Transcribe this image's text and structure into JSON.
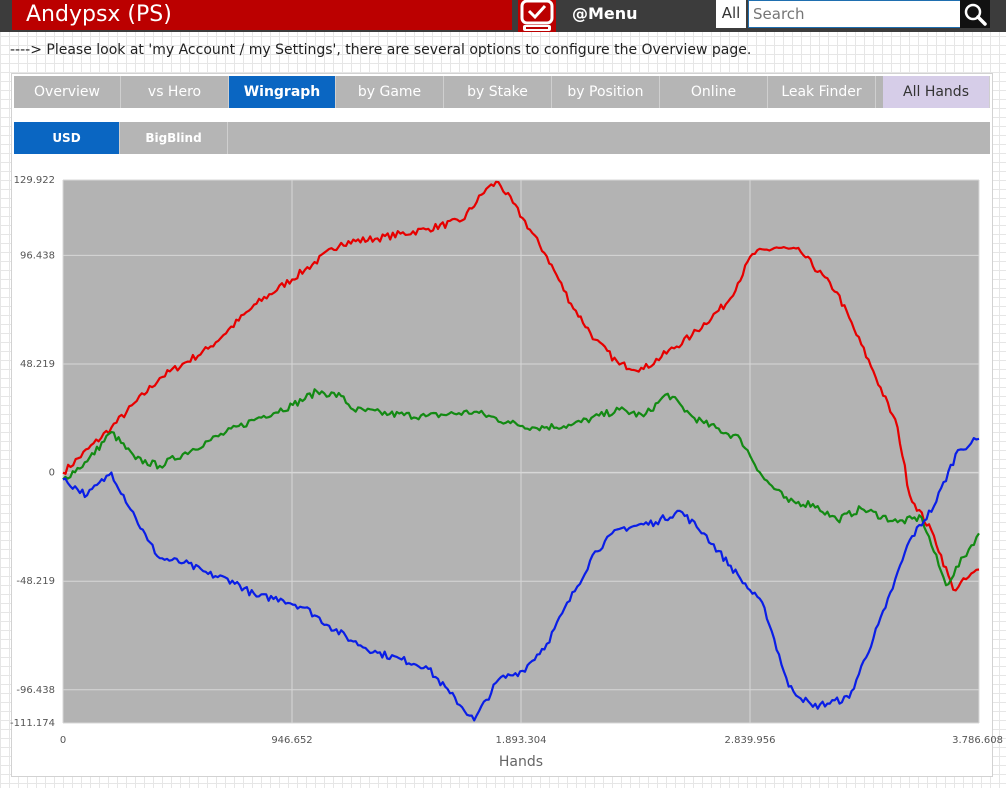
{
  "header": {
    "title": "Andypsx (PS)",
    "menu_label": "@Menu",
    "search_scope": "All",
    "search_placeholder": "Search"
  },
  "notice": "----> Please look at 'my Account / my Settings', there are several options to configure the Overview page.",
  "tabs": [
    {
      "label": "Overview",
      "active": false
    },
    {
      "label": "vs Hero",
      "active": false
    },
    {
      "label": "Wingraph",
      "active": true
    },
    {
      "label": "by Game",
      "active": false
    },
    {
      "label": "by Stake",
      "active": false
    },
    {
      "label": "by Position",
      "active": false
    },
    {
      "label": "Online",
      "active": false
    },
    {
      "label": "Leak Finder",
      "active": false
    },
    {
      "label": "All Hands",
      "active": false
    }
  ],
  "subtabs": [
    {
      "label": "USD",
      "active": true
    },
    {
      "label": "BigBlind",
      "active": false
    }
  ],
  "colors": {
    "brand": "#bb0000",
    "accent": "#0a66c2",
    "plot_bg": "#b3b3b3",
    "series_red": "#e60000",
    "series_green": "#138a13",
    "series_blue": "#0a1ee6"
  },
  "chart_data": {
    "type": "line",
    "xlabel": "Hands",
    "ylabel": "",
    "xlim": [
      0,
      3786608
    ],
    "ylim": [
      -111174,
      129922
    ],
    "x_ticks": [
      0,
      946652,
      1893304,
      2839956,
      3786608
    ],
    "x_tick_labels": [
      "0",
      "946.652",
      "1.893.304",
      "2.839.956",
      "3.786.608"
    ],
    "y_ticks": [
      129922,
      96438,
      48219,
      0,
      -48219,
      -96438,
      -111174
    ],
    "y_tick_labels": [
      "129.922",
      "96.438",
      "48.219",
      "0",
      "-48.219",
      "-96.438",
      "-111.174"
    ],
    "grid": true,
    "series": [
      {
        "color": "#e60000",
        "x": [
          0,
          200000,
          400000,
          600000,
          800000,
          1000000,
          1150000,
          1300000,
          1500000,
          1650000,
          1750000,
          1800000,
          1900000,
          2000000,
          2100000,
          2200000,
          2300000,
          2400000,
          2600000,
          2750000,
          2850000,
          2950000,
          3050000,
          3200000,
          3350000,
          3450000,
          3500000,
          3600000,
          3680000,
          3786608
        ],
        "y": [
          0,
          20000,
          42000,
          55000,
          75000,
          90000,
          102000,
          104000,
          108000,
          112000,
          126000,
          129000,
          113000,
          96000,
          75000,
          59000,
          48000,
          46000,
          61000,
          76000,
          97000,
          100000,
          98000,
          80000,
          45000,
          20000,
          -10000,
          -28000,
          -52000,
          -43000
        ]
      },
      {
        "color": "#138a13",
        "x": [
          0,
          100000,
          200000,
          300000,
          400000,
          600000,
          800000,
          950000,
          1050000,
          1150000,
          1200000,
          1350000,
          1500000,
          1700000,
          1850000,
          1950000,
          2100000,
          2300000,
          2400000,
          2500000,
          2600000,
          2650000,
          2800000,
          2900000,
          3000000,
          3100000,
          3200000,
          3300000,
          3450000,
          3550000,
          3650000,
          3786608
        ],
        "y": [
          -3000,
          5000,
          18000,
          6000,
          3000,
          14000,
          24000,
          30000,
          36000,
          34000,
          28000,
          26000,
          25000,
          27000,
          22000,
          20000,
          21000,
          28000,
          25000,
          35000,
          25000,
          22000,
          15000,
          -3000,
          -13000,
          -14000,
          -21000,
          -16000,
          -22000,
          -20000,
          -50000,
          -27000
        ]
      },
      {
        "color": "#0a1ee6",
        "x": [
          0,
          100000,
          200000,
          300000,
          350000,
          400000,
          500000,
          600000,
          700000,
          800000,
          900000,
          1000000,
          1100000,
          1200000,
          1300000,
          1400000,
          1500000,
          1600000,
          1700000,
          1800000,
          1850000,
          1900000,
          2000000,
          2200000,
          2300000,
          2450000,
          2550000,
          2650000,
          2800000,
          2900000,
          3000000,
          3100000,
          3250000,
          3400000,
          3500000,
          3600000,
          3700000,
          3786608
        ],
        "y": [
          -3000,
          -10000,
          0,
          -20000,
          -30000,
          -38000,
          -40000,
          -45000,
          -48000,
          -55000,
          -56000,
          -60000,
          -68000,
          -75000,
          -80000,
          -83000,
          -86000,
          -98000,
          -110000,
          -92000,
          -90000,
          -88000,
          -76000,
          -35000,
          -25000,
          -22000,
          -17000,
          -27000,
          -47000,
          -60000,
          -95000,
          -104000,
          -100000,
          -60000,
          -30000,
          -15000,
          10000,
          15000
        ]
      }
    ]
  }
}
